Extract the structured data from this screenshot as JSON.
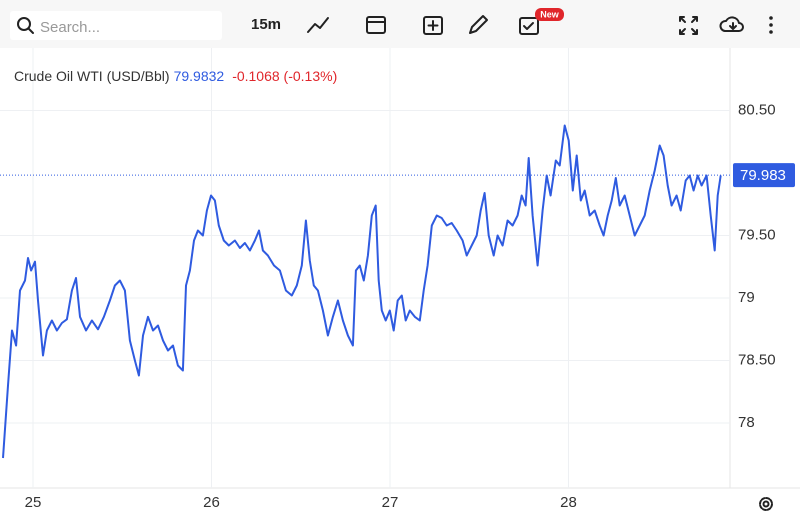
{
  "toolbar": {
    "search_placeholder": "Search...",
    "interval": "15m",
    "badge": "New"
  },
  "chart_data": {
    "type": "line",
    "x": [
      24.832,
      24.86,
      24.882,
      24.905,
      24.927,
      24.955,
      24.972,
      24.989,
      25.011,
      25.028,
      25.056,
      25.078,
      25.106,
      25.134,
      25.162,
      25.19,
      25.218,
      25.241,
      25.263,
      25.297,
      25.33,
      25.364,
      25.397,
      25.431,
      25.459,
      25.487,
      25.515,
      25.543,
      25.571,
      25.593,
      25.616,
      25.644,
      25.672,
      25.7,
      25.728,
      25.756,
      25.784,
      25.812,
      25.84,
      25.857,
      25.879,
      25.902,
      25.924,
      25.952,
      25.974,
      25.997,
      26.019,
      26.041,
      26.069,
      26.097,
      26.131,
      26.159,
      26.187,
      26.215,
      26.243,
      26.266,
      26.288,
      26.316,
      26.35,
      26.383,
      26.417,
      26.45,
      26.478,
      26.506,
      26.529,
      26.551,
      26.573,
      26.596,
      26.624,
      26.652,
      26.68,
      26.708,
      26.736,
      26.764,
      26.792,
      26.809,
      26.831,
      26.853,
      26.876,
      26.898,
      26.92,
      26.937,
      26.954,
      26.976,
      26.999,
      27.021,
      27.043,
      27.066,
      27.088,
      27.111,
      27.139,
      27.167,
      27.189,
      27.211,
      27.234,
      27.262,
      27.29,
      27.318,
      27.346,
      27.374,
      27.407,
      27.43,
      27.458,
      27.486,
      27.508,
      27.53,
      27.553,
      27.581,
      27.603,
      27.631,
      27.659,
      27.687,
      27.715,
      27.738,
      27.76,
      27.777,
      27.799,
      27.827,
      27.855,
      27.878,
      27.9,
      27.929,
      27.951,
      27.979,
      28.001,
      28.024,
      28.046,
      28.069,
      28.091,
      28.119,
      28.147,
      28.175,
      28.197,
      28.22,
      28.242,
      28.265,
      28.287,
      28.315,
      28.343,
      28.371,
      28.399,
      28.427,
      28.455,
      28.483,
      28.511,
      28.533,
      28.556,
      28.578,
      28.606,
      28.629,
      28.657,
      28.679,
      28.701,
      28.724,
      28.746,
      28.774,
      28.797,
      28.819,
      28.836,
      28.853
    ],
    "series": [
      {
        "name": "Crude Oil WTI (USD/Bbl)",
        "color": "#2f5be0",
        "values": [
          77.72,
          78.3,
          78.74,
          78.62,
          79.06,
          79.14,
          79.32,
          79.22,
          79.29,
          78.98,
          78.54,
          78.74,
          78.82,
          78.74,
          78.8,
          78.83,
          79.06,
          79.16,
          78.85,
          78.74,
          78.82,
          78.75,
          78.85,
          78.98,
          79.1,
          79.14,
          79.06,
          78.66,
          78.5,
          78.38,
          78.7,
          78.85,
          78.74,
          78.78,
          78.66,
          78.58,
          78.62,
          78.46,
          78.42,
          79.1,
          79.22,
          79.46,
          79.54,
          79.5,
          79.7,
          79.82,
          79.78,
          79.58,
          79.46,
          79.42,
          79.46,
          79.4,
          79.44,
          79.38,
          79.46,
          79.54,
          79.38,
          79.34,
          79.26,
          79.22,
          79.06,
          79.02,
          79.1,
          79.26,
          79.62,
          79.3,
          79.1,
          79.06,
          78.9,
          78.7,
          78.85,
          78.98,
          78.82,
          78.7,
          78.62,
          79.22,
          79.26,
          79.14,
          79.34,
          79.66,
          79.74,
          79.14,
          78.9,
          78.82,
          78.9,
          78.74,
          78.98,
          79.02,
          78.82,
          78.9,
          78.85,
          78.82,
          79.06,
          79.26,
          79.58,
          79.66,
          79.64,
          79.58,
          79.6,
          79.54,
          79.46,
          79.34,
          79.42,
          79.5,
          79.7,
          79.84,
          79.5,
          79.34,
          79.5,
          79.42,
          79.62,
          79.58,
          79.66,
          79.82,
          79.74,
          80.12,
          79.66,
          79.26,
          79.7,
          79.98,
          79.82,
          80.1,
          80.06,
          80.38,
          80.26,
          79.86,
          80.14,
          79.78,
          79.86,
          79.66,
          79.7,
          79.58,
          79.5,
          79.66,
          79.78,
          79.96,
          79.74,
          79.82,
          79.66,
          79.5,
          79.58,
          79.66,
          79.86,
          80.02,
          80.22,
          80.14,
          79.9,
          79.74,
          79.82,
          79.7,
          79.94,
          79.98,
          79.86,
          79.98,
          79.9,
          79.98,
          79.66,
          79.38,
          79.82,
          79.98
        ]
      }
    ],
    "last_value": 79.9832,
    "change": "-0.1068 (-0.13%)",
    "price_line": 79.983,
    "xlim": [
      24.815,
      28.905
    ],
    "xticks": [
      25,
      26,
      27,
      28
    ],
    "ylim": [
      77.48,
      81.0
    ],
    "yticks": [
      78,
      {
        "value": 78.5,
        "label": "78.50"
      },
      79,
      {
        "value": 79.5,
        "label": "79.50"
      },
      {
        "value": 80.5,
        "label": "80.50"
      }
    ],
    "grid": true
  }
}
